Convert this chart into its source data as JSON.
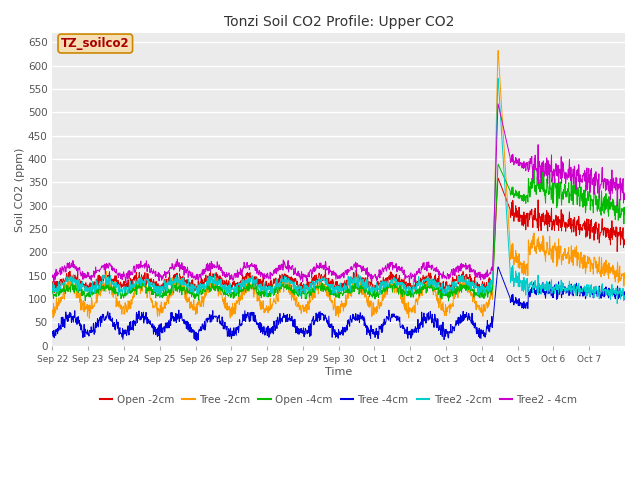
{
  "title": "Tonzi Soil CO2 Profile: Upper CO2",
  "xlabel": "Time",
  "ylabel": "Soil CO2 (ppm)",
  "ylim": [
    0,
    670
  ],
  "yticks": [
    0,
    50,
    100,
    150,
    200,
    250,
    300,
    350,
    400,
    450,
    500,
    550,
    600,
    650
  ],
  "legend_label": "TZ_soilco2",
  "legend_box_facecolor": "#f5deb3",
  "legend_box_edgecolor": "#cc8800",
  "legend_text_color": "#aa0000",
  "series": {
    "Open_2cm": {
      "color": "#dd0000",
      "label": "Open -2cm"
    },
    "Tree_2cm": {
      "color": "#ff9900",
      "label": "Tree -2cm"
    },
    "Open_4cm": {
      "color": "#00bb00",
      "label": "Open -4cm"
    },
    "Tree_4cm": {
      "color": "#0000dd",
      "label": "Tree -4cm"
    },
    "Tree2_2cm": {
      "color": "#00cccc",
      "label": "Tree2 -2cm"
    },
    "Tree2_4cm": {
      "color": "#cc00cc",
      "label": "Tree2 - 4cm"
    }
  },
  "xtick_labels": [
    "Sep 22",
    "Sep 23",
    "Sep 24",
    "Sep 25",
    "Sep 26",
    "Sep 27",
    "Sep 28",
    "Sep 29",
    "Sep 30",
    "Oct 1",
    "Oct 2",
    "Oct 3",
    "Oct 4",
    "Oct 5",
    "Oct 6",
    "Oct 7"
  ],
  "background_color": "#ffffff",
  "plot_bg_color": "#ebebeb",
  "grid_color": "#ffffff"
}
